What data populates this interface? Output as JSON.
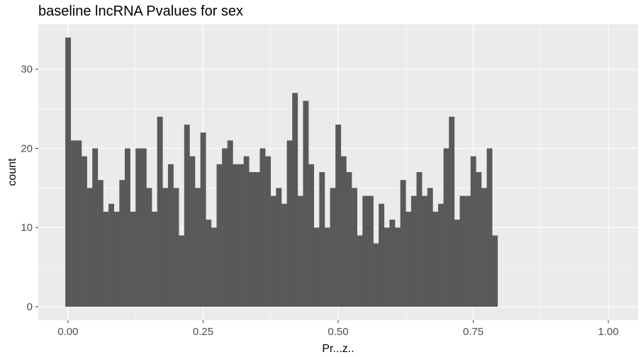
{
  "chart_data": {
    "type": "bar",
    "title": "baseline lncRNA Pvalues for sex",
    "xlabel": "Pr...z..",
    "ylabel": "count",
    "bin_width": 0.01,
    "x_start": -0.005,
    "xlim": [
      -0.055,
      1.055
    ],
    "ylim": [
      -1.7,
      35.7
    ],
    "x_ticks": [
      0.0,
      0.25,
      0.5,
      0.75,
      1.0
    ],
    "x_tick_labels": [
      "0.00",
      "0.25",
      "0.50",
      "0.75",
      "1.00"
    ],
    "y_ticks": [
      0,
      10,
      20,
      30
    ],
    "y_tick_labels": [
      "0",
      "10",
      "20",
      "30"
    ],
    "values": [
      34,
      21,
      21,
      19,
      15,
      20,
      16,
      12,
      13,
      12,
      16,
      20,
      12,
      20,
      20,
      15,
      12,
      24,
      15,
      18,
      15,
      9,
      23,
      19,
      15,
      22,
      11,
      10,
      18,
      20,
      21,
      18,
      18,
      19,
      17,
      17,
      20,
      19,
      14,
      15,
      13,
      21,
      27,
      14,
      26,
      18,
      10,
      17,
      10,
      15,
      23,
      19,
      17,
      15,
      9,
      14,
      14,
      8,
      13,
      10,
      11,
      10,
      16,
      12,
      14,
      17,
      14,
      15,
      12,
      13,
      20,
      24,
      11,
      14,
      14,
      19,
      17,
      15,
      20,
      9
    ],
    "bar_color": "#595959",
    "panel_color": "#ebebeb",
    "grid_major_color": "#ffffff",
    "grid": true,
    "legend": "none"
  }
}
